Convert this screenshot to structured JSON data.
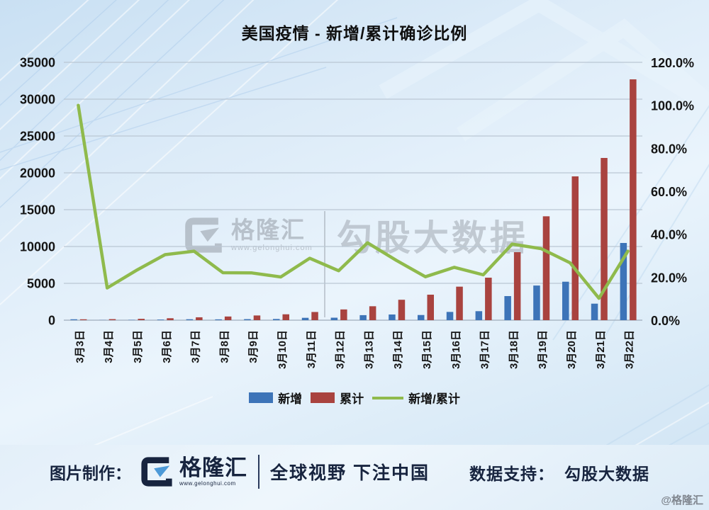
{
  "title": "美国疫情 - 新增/累计确诊比例",
  "chart_data": {
    "type": "combo",
    "categories": [
      "3月3日",
      "3月4日",
      "3月5日",
      "3月6日",
      "3月7日",
      "3月8日",
      "3月9日",
      "3月10日",
      "3月11日",
      "3月12日",
      "3月13日",
      "3月14日",
      "3月15日",
      "3月16日",
      "3月17日",
      "3月18日",
      "3月19日",
      "3月20日",
      "3月21日",
      "3月22日"
    ],
    "series": [
      {
        "name": "新增",
        "type": "bar",
        "axis": "left",
        "color": "#3d74b8",
        "values": [
          118,
          21,
          42,
          80,
          125,
          110,
          140,
          160,
          320,
          335,
          680,
          770,
          700,
          1120,
          1220,
          3270,
          4700,
          5220,
          2240,
          10480
        ]
      },
      {
        "name": "累计",
        "type": "bar",
        "axis": "left",
        "color": "#a9433f",
        "values": [
          118,
          140,
          182,
          262,
          390,
          497,
          637,
          797,
          1110,
          1455,
          1890,
          2770,
          3460,
          4550,
          5770,
          9230,
          14100,
          19520,
          22020,
          32690
        ]
      },
      {
        "name": "新增/累计",
        "type": "line",
        "axis": "right",
        "color": "#8fba4c",
        "values": [
          100.0,
          15.0,
          23.1,
          30.5,
          32.1,
          22.1,
          22.0,
          20.1,
          28.8,
          23.0,
          36.0,
          27.8,
          20.2,
          24.6,
          21.1,
          35.4,
          33.3,
          26.7,
          10.2,
          32.1
        ]
      }
    ],
    "left_axis": {
      "min": 0,
      "max": 35000,
      "step": 5000,
      "tick_labels": [
        "0",
        "5000",
        "10000",
        "15000",
        "20000",
        "25000",
        "30000",
        "35000"
      ]
    },
    "right_axis": {
      "min": 0,
      "max": 120,
      "step": 20,
      "tick_labels": [
        "0.0%",
        "20.0%",
        "40.0%",
        "60.0%",
        "80.0%",
        "100.0%",
        "120.0%"
      ]
    },
    "grid": true,
    "legend_position": "bottom"
  },
  "legend": {
    "items": [
      {
        "label": "新增",
        "color": "#3d74b8",
        "type": "bar"
      },
      {
        "label": "累计",
        "color": "#a9433f",
        "type": "bar"
      },
      {
        "label": "新增/累计",
        "color": "#8fba4c",
        "type": "line"
      }
    ]
  },
  "watermark": {
    "brand": "格隆汇",
    "url": "www.gelonghui.com",
    "product": "勾股大数据"
  },
  "footer": {
    "made_by_label": "图片制作：",
    "brand": "格隆汇",
    "brand_url": "www.gelonghui.com",
    "slogan": "全球视野 下注中国",
    "data_support_label": "数据支持：",
    "data_support_value": "勾股大数据",
    "credit": "@格隆汇"
  },
  "colors": {
    "new_bar": "#3d74b8",
    "cumulative_bar": "#a9433f",
    "ratio_line": "#8fba4c",
    "navy_brand": "#17243f",
    "gridline": "#bac7d4"
  }
}
